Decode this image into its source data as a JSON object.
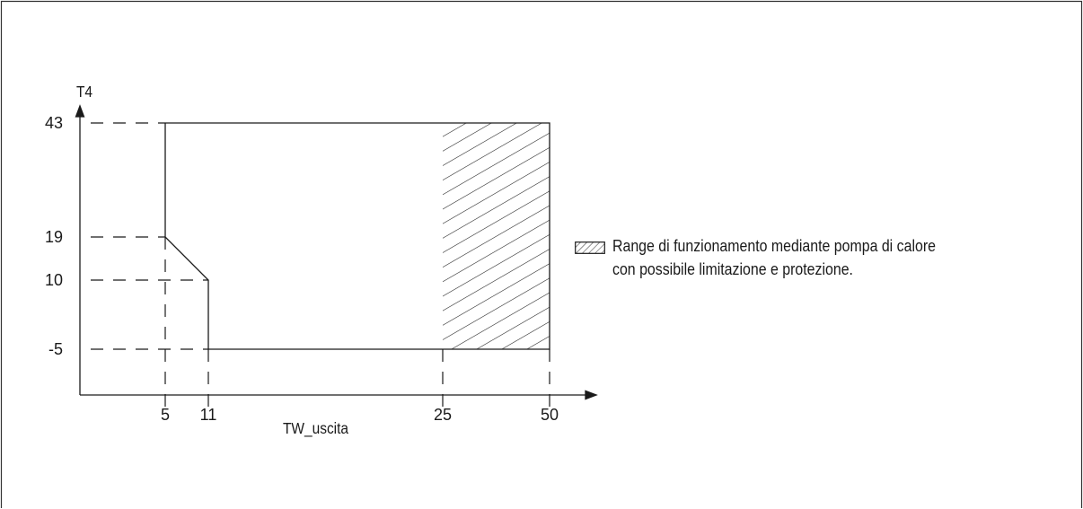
{
  "chart_data": {
    "type": "area",
    "xlabel": "TW_uscita",
    "ylabel": "T4",
    "x_ticks": [
      "5",
      "11",
      "25",
      "50"
    ],
    "y_ticks": [
      "43",
      "19",
      "10",
      "-5"
    ],
    "operating_region": {
      "outline": [
        [
          5,
          43
        ],
        [
          5,
          19
        ],
        [
          11,
          10
        ],
        [
          11,
          -5
        ],
        [
          50,
          -5
        ],
        [
          50,
          43
        ]
      ]
    },
    "hatched_region": {
      "x_range": [
        25,
        50
      ],
      "y_range": [
        -5,
        43
      ]
    },
    "legend": {
      "placement": "right",
      "lines": [
        "Range di funzionamento mediante pompa di calore",
        "con possibile limitazione e protezione."
      ]
    }
  }
}
